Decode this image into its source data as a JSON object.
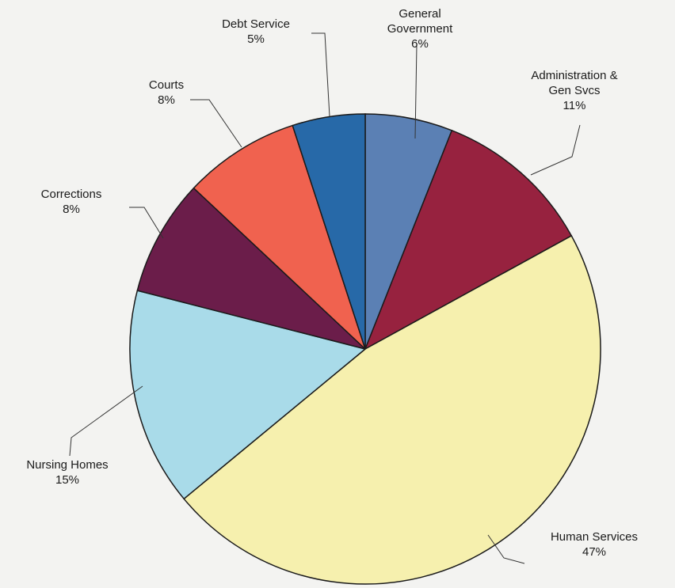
{
  "chart_data": {
    "type": "pie",
    "title": "",
    "slices": [
      {
        "label": "General Government",
        "label_lines": [
          "General",
          "Government"
        ],
        "value": 6,
        "display": "6%",
        "color": "#5b80b4"
      },
      {
        "label": "Administration & Gen Svcs",
        "label_lines": [
          "Administration &",
          "Gen Svcs"
        ],
        "value": 11,
        "display": "11%",
        "color": "#97223f"
      },
      {
        "label": "Human Services",
        "label_lines": [
          "Human Services"
        ],
        "value": 47,
        "display": "47%",
        "color": "#f6f0ae"
      },
      {
        "label": "Nursing Homes",
        "label_lines": [
          "Nursing Homes"
        ],
        "value": 15,
        "display": "15%",
        "color": "#a9dbe9"
      },
      {
        "label": "Corrections",
        "label_lines": [
          "Corrections"
        ],
        "value": 8,
        "display": "8%",
        "color": "#6b1d4a"
      },
      {
        "label": "Courts",
        "label_lines": [
          "Courts"
        ],
        "value": 8,
        "display": "8%",
        "color": "#f0624f"
      },
      {
        "label": "Debt Service",
        "label_lines": [
          "Debt Service"
        ],
        "value": 5,
        "display": "5%",
        "color": "#2769a8"
      }
    ],
    "legend": "none"
  }
}
